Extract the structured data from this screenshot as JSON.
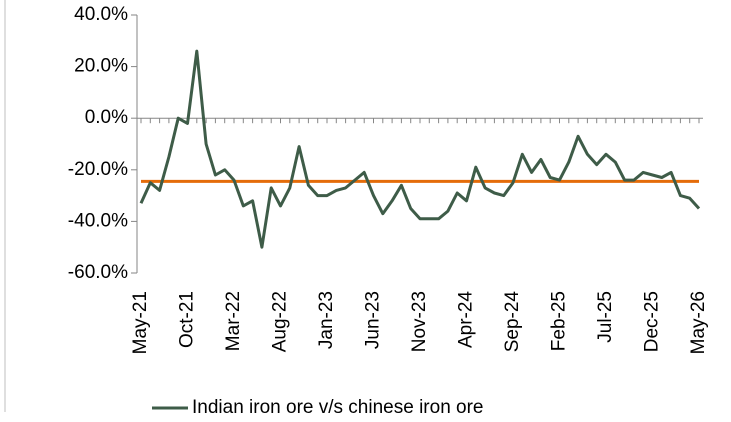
{
  "chart_data": {
    "type": "line",
    "categories": [
      "May-21",
      null,
      null,
      null,
      null,
      "Oct-21",
      null,
      null,
      null,
      null,
      "Mar-22",
      null,
      null,
      null,
      null,
      "Aug-22",
      null,
      null,
      null,
      null,
      "Jan-23",
      null,
      null,
      null,
      null,
      "Jun-23",
      null,
      null,
      null,
      null,
      "Nov-23",
      null,
      null,
      null,
      null,
      "Apr-24",
      null,
      null,
      null,
      null,
      "Sep-24",
      null,
      null,
      null,
      null,
      "Feb-25",
      null,
      null,
      null,
      null,
      "Jul-25",
      null,
      null,
      null,
      null,
      "Dec-25",
      null,
      null,
      null,
      null,
      "May-26"
    ],
    "series": [
      {
        "name": "Indian iron ore v/s chinese iron ore",
        "color": "#3e5c48",
        "values": [
          -33,
          -25,
          -28,
          -15,
          0,
          -2,
          26,
          -10,
          -22,
          -20,
          -24,
          -34,
          -32,
          -50,
          -27,
          -34,
          -27,
          -11,
          -26,
          -30,
          -30,
          -28,
          -27,
          -24,
          -21,
          -30,
          -37,
          -32,
          -26,
          -35,
          -39,
          -39,
          -39,
          -36,
          -29,
          -32,
          -19,
          -27,
          -29,
          -30,
          -25,
          -14,
          -21,
          -16,
          -23,
          -24,
          -17,
          -7,
          -14,
          -18,
          -14,
          -17,
          -24,
          -24,
          -21,
          -22,
          -23,
          -21,
          -30,
          -31,
          -35
        ]
      }
    ],
    "reference_line": {
      "value": -24.5,
      "color": "#e46c0a"
    },
    "ylim": [
      -60,
      40
    ],
    "yticks": [
      {
        "value": -60,
        "label": "-60.0%"
      },
      {
        "value": -40,
        "label": "-40.0%"
      },
      {
        "value": -20,
        "label": "-20.0%"
      },
      {
        "value": 0,
        "label": "0.0%"
      },
      {
        "value": 20,
        "label": "20.0%"
      },
      {
        "value": 40,
        "label": "40.0%"
      }
    ],
    "legend": "bottom"
  }
}
